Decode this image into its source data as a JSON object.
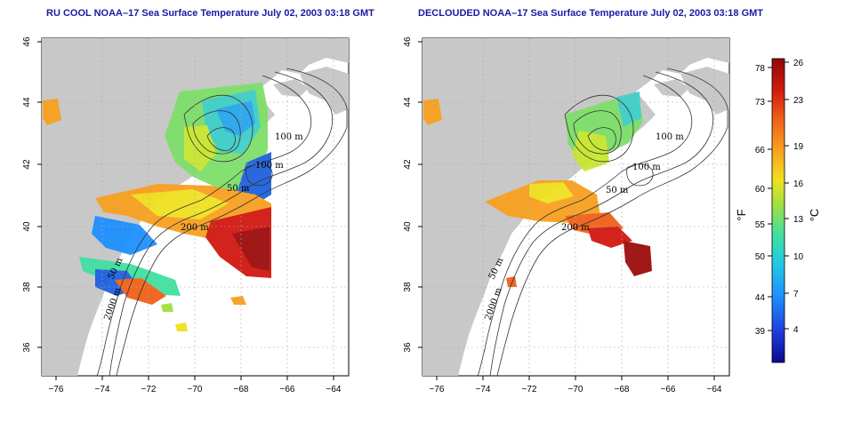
{
  "panels": [
    {
      "title": "RU COOL NOAA–17 Sea Surface Temperature July 02, 2003 03:18 GMT",
      "contour_labels": [
        "100 m",
        "100 m",
        "50 m",
        "200 m",
        "50 m",
        "2000 m"
      ]
    },
    {
      "title": "DECLOUDED NOAA–17 Sea Surface Temperature July 02, 2003 03:18 GMT",
      "contour_labels": [
        "100 m",
        "100 m",
        "50 m",
        "200 m",
        "50 m",
        "2000 m"
      ]
    }
  ],
  "axes": {
    "x_ticks": [
      "−76",
      "−74",
      "−72",
      "−70",
      "−68",
      "−66",
      "−64"
    ],
    "y_ticks": [
      "46",
      "44",
      "42",
      "40",
      "38",
      "36"
    ]
  },
  "colorbar": {
    "fahrenheit_ticks": [
      "78",
      "73",
      "66",
      "60",
      "55",
      "50",
      "44",
      "39"
    ],
    "celsius_ticks": [
      "26",
      "23",
      "19",
      "16",
      "13",
      "10",
      "7",
      "4"
    ],
    "fahrenheit_unit": "°F",
    "celsius_unit": "°C",
    "colors": [
      "#0a0a8c",
      "#1e3cdc",
      "#1e90ff",
      "#20c8e6",
      "#40e0a0",
      "#a0e040",
      "#f0e020",
      "#f8a020",
      "#f06018",
      "#d01810",
      "#8c0a0a"
    ]
  }
}
